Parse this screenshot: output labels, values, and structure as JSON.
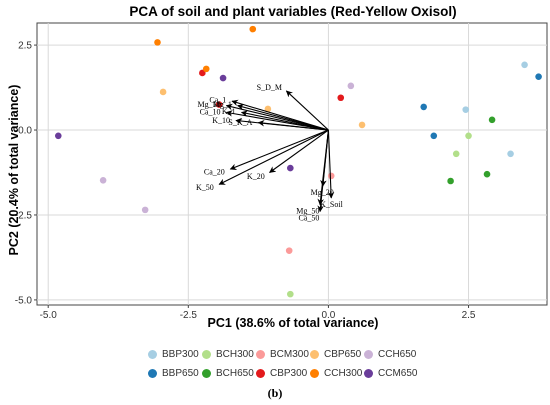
{
  "caption": "(b)",
  "chart_data": {
    "type": "scatter",
    "title": "PCA of soil and plant variables (Red-Yellow Oxisol)",
    "xlabel": "PC1 (38.6% of total variance)",
    "ylabel": "PC2 (20.4% of total variance)",
    "xlim": [
      -5.2,
      3.9
    ],
    "ylim": [
      -5.15,
      3.15
    ],
    "xticks": [
      -5.0,
      -2.5,
      0.0,
      2.5
    ],
    "xtick_labels": [
      "-5.0",
      "-2.5",
      "0.0",
      "2.5"
    ],
    "yticks": [
      -5.0,
      -2.5,
      0.0,
      2.5
    ],
    "ytick_labels": [
      "-5.0",
      "-2.5",
      "0.0",
      "2.5"
    ],
    "grid": true,
    "legend_position": "bottom",
    "series": [
      {
        "name": "BBP300",
        "color": "#a6cee3",
        "points": [
          [
            2.45,
            0.6
          ],
          [
            3.25,
            -0.7
          ],
          [
            3.5,
            1.92
          ]
        ]
      },
      {
        "name": "BBP650",
        "color": "#1f78b4",
        "points": [
          [
            1.7,
            0.68
          ],
          [
            1.88,
            -0.17
          ],
          [
            3.75,
            1.57
          ]
        ]
      },
      {
        "name": "BCH300",
        "color": "#b2df8a",
        "points": [
          [
            2.28,
            -0.7
          ],
          [
            2.5,
            -0.17
          ],
          [
            -0.68,
            -4.83
          ]
        ]
      },
      {
        "name": "BCH650",
        "color": "#33a02c",
        "points": [
          [
            2.18,
            -1.5
          ],
          [
            2.83,
            -1.3
          ],
          [
            2.92,
            0.3
          ]
        ]
      },
      {
        "name": "BCM300",
        "color": "#fb9a99",
        "points": [
          [
            -0.7,
            -3.55
          ],
          [
            0.05,
            -1.35
          ]
        ]
      },
      {
        "name": "CBP300",
        "color": "#e31a1c",
        "points": [
          [
            -2.25,
            1.68
          ],
          [
            -1.95,
            0.75
          ],
          [
            0.22,
            0.95
          ]
        ]
      },
      {
        "name": "CBP650",
        "color": "#fdbf6f",
        "points": [
          [
            -2.95,
            1.12
          ],
          [
            -1.08,
            0.62
          ],
          [
            0.6,
            0.15
          ]
        ]
      },
      {
        "name": "CCH300",
        "color": "#ff7f00",
        "points": [
          [
            -3.05,
            2.58
          ],
          [
            -2.18,
            1.8
          ],
          [
            -1.35,
            2.97
          ]
        ]
      },
      {
        "name": "CCH650",
        "color": "#cab2d6",
        "points": [
          [
            -4.02,
            -1.48
          ],
          [
            -3.27,
            -2.35
          ],
          [
            0.4,
            1.3
          ]
        ]
      },
      {
        "name": "CCM650",
        "color": "#6a3d9a",
        "points": [
          [
            -4.82,
            -0.17
          ],
          [
            -1.88,
            1.53
          ],
          [
            -0.68,
            -1.12
          ]
        ]
      }
    ],
    "loadings": [
      {
        "label": "S_D_M",
        "x": -0.75,
        "y": 1.15
      },
      {
        "label": "Ca_1",
        "x": -1.72,
        "y": 0.85
      },
      {
        "label": "Mg_1",
        "x": -1.62,
        "y": 0.72
      },
      {
        "label": "Mg_10",
        "x": -1.82,
        "y": 0.72
      },
      {
        "label": "Ca_10",
        "x": -1.82,
        "y": 0.52
      },
      {
        "label": "K_1",
        "x": -1.55,
        "y": 0.52
      },
      {
        "label": "K_10",
        "x": -1.65,
        "y": 0.28
      },
      {
        "label": "S_K_A",
        "x": -1.25,
        "y": 0.22
      },
      {
        "label": "Ca_20",
        "x": -1.75,
        "y": -1.15
      },
      {
        "label": "K_20",
        "x": -1.05,
        "y": -1.25
      },
      {
        "label": "K_50",
        "x": -1.95,
        "y": -1.6
      },
      {
        "label": "Mg_20",
        "x": -0.1,
        "y": -1.65
      },
      {
        "label": "Mg_50",
        "x": -0.15,
        "y": -2.2
      },
      {
        "label": "Ca_50",
        "x": -0.15,
        "y": -2.4
      },
      {
        "label": "K_Soil",
        "x": 0.05,
        "y": -2.0
      }
    ]
  }
}
